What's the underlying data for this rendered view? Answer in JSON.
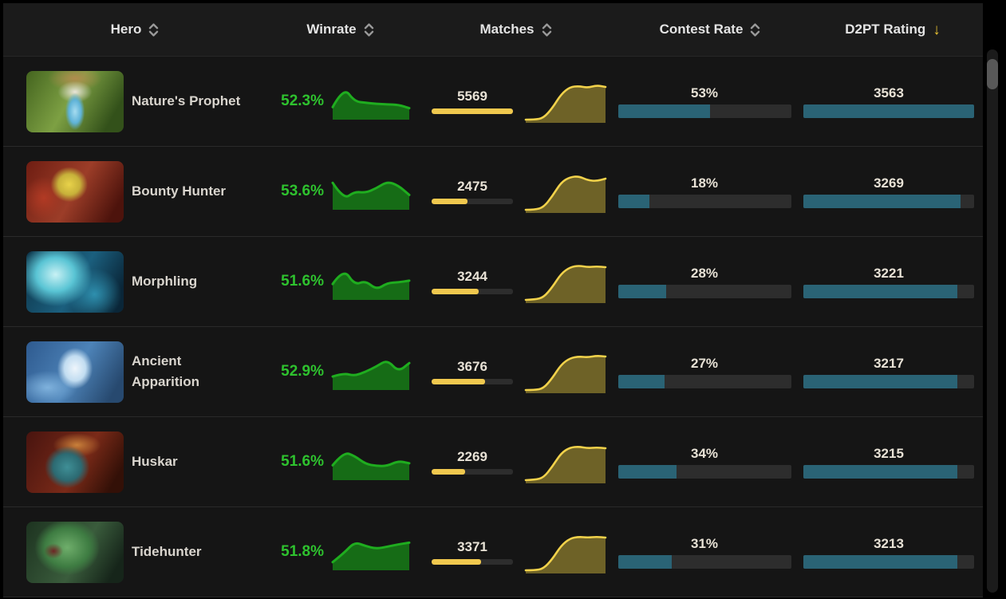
{
  "colors": {
    "winrate_text": "#2ec22e",
    "spark_green_stroke": "#1fad1f",
    "spark_green_fill": "#166c16",
    "spark_yellow_stroke": "#f2d24b",
    "spark_yellow_fill": "#6e6227",
    "bar_yellow": "#f0c84e",
    "bar_teal": "#2a6375",
    "bar_track": "#2d2d2d",
    "sort_active": "#e7c032"
  },
  "header": {
    "columns": [
      {
        "label": "Hero",
        "sortable": true,
        "sort": null
      },
      {
        "label": "Winrate",
        "sortable": true,
        "sort": null
      },
      {
        "label": "Matches",
        "sortable": true,
        "sort": null
      },
      {
        "label": "Contest Rate",
        "sortable": true,
        "sort": null
      },
      {
        "label": "D2PT Rating",
        "sortable": true,
        "sort": "desc",
        "sort_icon": "↓"
      }
    ]
  },
  "rows": [
    {
      "hero": "Nature's Prophet",
      "winrate": "52.3%",
      "winrate_trend": [
        0.35,
        0.95,
        0.52,
        0.48,
        0.45,
        0.43,
        0.42,
        0.32
      ],
      "matches": "5569",
      "matches_fill_pct": 100,
      "matches_trend": [
        0.06,
        0.06,
        0.1,
        0.35,
        0.7,
        0.88,
        0.9,
        0.86,
        0.92,
        0.88
      ],
      "contest_rate": "53%",
      "contest_fill_pct": 53,
      "rating": "3563",
      "rating_fill_pct": 100
    },
    {
      "hero": "Bounty Hunter",
      "winrate": "53.6%",
      "winrate_trend": [
        0.78,
        0.28,
        0.52,
        0.48,
        0.62,
        0.82,
        0.7,
        0.42
      ],
      "matches": "2475",
      "matches_fill_pct": 44,
      "matches_trend": [
        0.06,
        0.06,
        0.12,
        0.4,
        0.75,
        0.88,
        0.9,
        0.8,
        0.78,
        0.84
      ],
      "contest_rate": "18%",
      "contest_fill_pct": 18,
      "rating": "3269",
      "rating_fill_pct": 92
    },
    {
      "hero": "Morphling",
      "winrate": "51.6%",
      "winrate_trend": [
        0.45,
        0.92,
        0.42,
        0.55,
        0.28,
        0.48,
        0.5,
        0.55
      ],
      "matches": "3244",
      "matches_fill_pct": 58,
      "matches_trend": [
        0.06,
        0.07,
        0.12,
        0.38,
        0.72,
        0.88,
        0.92,
        0.88,
        0.9,
        0.88
      ],
      "contest_rate": "28%",
      "contest_fill_pct": 28,
      "rating": "3221",
      "rating_fill_pct": 90
    },
    {
      "hero": "Ancient Apparition",
      "winrate": "52.9%",
      "winrate_trend": [
        0.38,
        0.48,
        0.4,
        0.52,
        0.68,
        0.88,
        0.52,
        0.78
      ],
      "matches": "3676",
      "matches_fill_pct": 66,
      "matches_trend": [
        0.06,
        0.06,
        0.1,
        0.36,
        0.7,
        0.86,
        0.9,
        0.88,
        0.92,
        0.9
      ],
      "contest_rate": "27%",
      "contest_fill_pct": 27,
      "rating": "3217",
      "rating_fill_pct": 90
    },
    {
      "hero": "Huskar",
      "winrate": "51.6%",
      "winrate_trend": [
        0.42,
        0.82,
        0.7,
        0.46,
        0.4,
        0.4,
        0.55,
        0.48
      ],
      "matches": "2269",
      "matches_fill_pct": 41,
      "matches_trend": [
        0.06,
        0.07,
        0.12,
        0.4,
        0.74,
        0.88,
        0.9,
        0.86,
        0.88,
        0.86
      ],
      "contest_rate": "34%",
      "contest_fill_pct": 34,
      "rating": "3215",
      "rating_fill_pct": 90
    },
    {
      "hero": "Tidehunter",
      "winrate": "51.8%",
      "winrate_trend": [
        0.22,
        0.48,
        0.82,
        0.7,
        0.62,
        0.68,
        0.75,
        0.8
      ],
      "matches": "3371",
      "matches_fill_pct": 61,
      "matches_trend": [
        0.06,
        0.06,
        0.1,
        0.34,
        0.68,
        0.86,
        0.9,
        0.88,
        0.9,
        0.88
      ],
      "contest_rate": "31%",
      "contest_fill_pct": 31,
      "rating": "3213",
      "rating_fill_pct": 90
    }
  ]
}
